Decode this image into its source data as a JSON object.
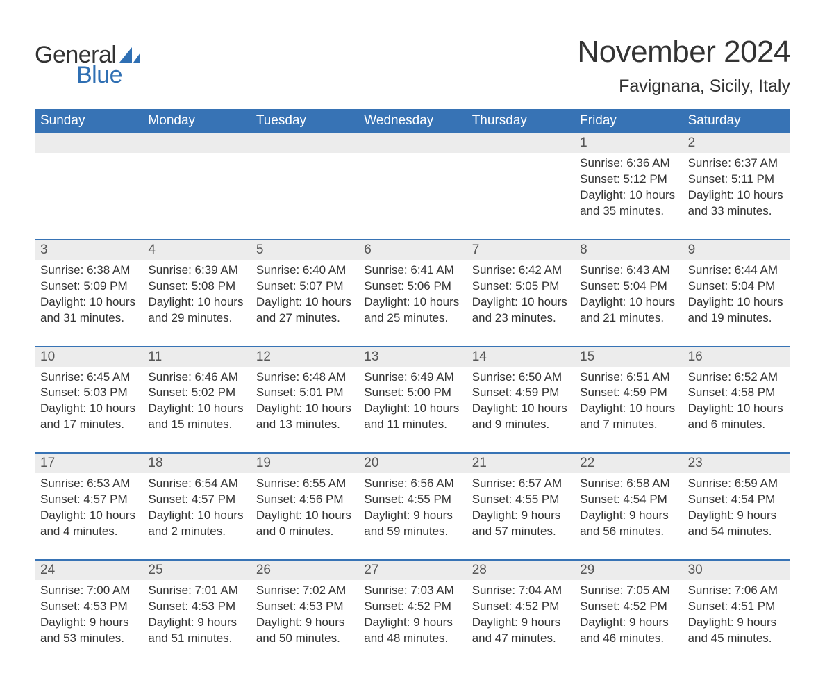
{
  "brand": {
    "text1": "General",
    "text2": "Blue",
    "text1_color": "#333333",
    "text2_color": "#2f6fb3",
    "sail_color": "#2f6fb3"
  },
  "title": "November 2024",
  "subtitle": "Favignana, Sicily, Italy",
  "colors": {
    "header_bg": "#3773b5",
    "header_text": "#ffffff",
    "daynum_bg": "#ececec",
    "row_divider": "#3773b5",
    "body_text": "#333333",
    "page_bg": "#ffffff"
  },
  "day_labels": [
    "Sunday",
    "Monday",
    "Tuesday",
    "Wednesday",
    "Thursday",
    "Friday",
    "Saturday"
  ],
  "weeks": [
    [
      {
        "blank": true
      },
      {
        "blank": true
      },
      {
        "blank": true
      },
      {
        "blank": true
      },
      {
        "blank": true
      },
      {
        "num": "1",
        "sunrise": "Sunrise: 6:36 AM",
        "sunset": "Sunset: 5:12 PM",
        "daylight1": "Daylight: 10 hours",
        "daylight2": "and 35 minutes."
      },
      {
        "num": "2",
        "sunrise": "Sunrise: 6:37 AM",
        "sunset": "Sunset: 5:11 PM",
        "daylight1": "Daylight: 10 hours",
        "daylight2": "and 33 minutes."
      }
    ],
    [
      {
        "num": "3",
        "sunrise": "Sunrise: 6:38 AM",
        "sunset": "Sunset: 5:09 PM",
        "daylight1": "Daylight: 10 hours",
        "daylight2": "and 31 minutes."
      },
      {
        "num": "4",
        "sunrise": "Sunrise: 6:39 AM",
        "sunset": "Sunset: 5:08 PM",
        "daylight1": "Daylight: 10 hours",
        "daylight2": "and 29 minutes."
      },
      {
        "num": "5",
        "sunrise": "Sunrise: 6:40 AM",
        "sunset": "Sunset: 5:07 PM",
        "daylight1": "Daylight: 10 hours",
        "daylight2": "and 27 minutes."
      },
      {
        "num": "6",
        "sunrise": "Sunrise: 6:41 AM",
        "sunset": "Sunset: 5:06 PM",
        "daylight1": "Daylight: 10 hours",
        "daylight2": "and 25 minutes."
      },
      {
        "num": "7",
        "sunrise": "Sunrise: 6:42 AM",
        "sunset": "Sunset: 5:05 PM",
        "daylight1": "Daylight: 10 hours",
        "daylight2": "and 23 minutes."
      },
      {
        "num": "8",
        "sunrise": "Sunrise: 6:43 AM",
        "sunset": "Sunset: 5:04 PM",
        "daylight1": "Daylight: 10 hours",
        "daylight2": "and 21 minutes."
      },
      {
        "num": "9",
        "sunrise": "Sunrise: 6:44 AM",
        "sunset": "Sunset: 5:04 PM",
        "daylight1": "Daylight: 10 hours",
        "daylight2": "and 19 minutes."
      }
    ],
    [
      {
        "num": "10",
        "sunrise": "Sunrise: 6:45 AM",
        "sunset": "Sunset: 5:03 PM",
        "daylight1": "Daylight: 10 hours",
        "daylight2": "and 17 minutes."
      },
      {
        "num": "11",
        "sunrise": "Sunrise: 6:46 AM",
        "sunset": "Sunset: 5:02 PM",
        "daylight1": "Daylight: 10 hours",
        "daylight2": "and 15 minutes."
      },
      {
        "num": "12",
        "sunrise": "Sunrise: 6:48 AM",
        "sunset": "Sunset: 5:01 PM",
        "daylight1": "Daylight: 10 hours",
        "daylight2": "and 13 minutes."
      },
      {
        "num": "13",
        "sunrise": "Sunrise: 6:49 AM",
        "sunset": "Sunset: 5:00 PM",
        "daylight1": "Daylight: 10 hours",
        "daylight2": "and 11 minutes."
      },
      {
        "num": "14",
        "sunrise": "Sunrise: 6:50 AM",
        "sunset": "Sunset: 4:59 PM",
        "daylight1": "Daylight: 10 hours",
        "daylight2": "and 9 minutes."
      },
      {
        "num": "15",
        "sunrise": "Sunrise: 6:51 AM",
        "sunset": "Sunset: 4:59 PM",
        "daylight1": "Daylight: 10 hours",
        "daylight2": "and 7 minutes."
      },
      {
        "num": "16",
        "sunrise": "Sunrise: 6:52 AM",
        "sunset": "Sunset: 4:58 PM",
        "daylight1": "Daylight: 10 hours",
        "daylight2": "and 6 minutes."
      }
    ],
    [
      {
        "num": "17",
        "sunrise": "Sunrise: 6:53 AM",
        "sunset": "Sunset: 4:57 PM",
        "daylight1": "Daylight: 10 hours",
        "daylight2": "and 4 minutes."
      },
      {
        "num": "18",
        "sunrise": "Sunrise: 6:54 AM",
        "sunset": "Sunset: 4:57 PM",
        "daylight1": "Daylight: 10 hours",
        "daylight2": "and 2 minutes."
      },
      {
        "num": "19",
        "sunrise": "Sunrise: 6:55 AM",
        "sunset": "Sunset: 4:56 PM",
        "daylight1": "Daylight: 10 hours",
        "daylight2": "and 0 minutes."
      },
      {
        "num": "20",
        "sunrise": "Sunrise: 6:56 AM",
        "sunset": "Sunset: 4:55 PM",
        "daylight1": "Daylight: 9 hours",
        "daylight2": "and 59 minutes."
      },
      {
        "num": "21",
        "sunrise": "Sunrise: 6:57 AM",
        "sunset": "Sunset: 4:55 PM",
        "daylight1": "Daylight: 9 hours",
        "daylight2": "and 57 minutes."
      },
      {
        "num": "22",
        "sunrise": "Sunrise: 6:58 AM",
        "sunset": "Sunset: 4:54 PM",
        "daylight1": "Daylight: 9 hours",
        "daylight2": "and 56 minutes."
      },
      {
        "num": "23",
        "sunrise": "Sunrise: 6:59 AM",
        "sunset": "Sunset: 4:54 PM",
        "daylight1": "Daylight: 9 hours",
        "daylight2": "and 54 minutes."
      }
    ],
    [
      {
        "num": "24",
        "sunrise": "Sunrise: 7:00 AM",
        "sunset": "Sunset: 4:53 PM",
        "daylight1": "Daylight: 9 hours",
        "daylight2": "and 53 minutes."
      },
      {
        "num": "25",
        "sunrise": "Sunrise: 7:01 AM",
        "sunset": "Sunset: 4:53 PM",
        "daylight1": "Daylight: 9 hours",
        "daylight2": "and 51 minutes."
      },
      {
        "num": "26",
        "sunrise": "Sunrise: 7:02 AM",
        "sunset": "Sunset: 4:53 PM",
        "daylight1": "Daylight: 9 hours",
        "daylight2": "and 50 minutes."
      },
      {
        "num": "27",
        "sunrise": "Sunrise: 7:03 AM",
        "sunset": "Sunset: 4:52 PM",
        "daylight1": "Daylight: 9 hours",
        "daylight2": "and 48 minutes."
      },
      {
        "num": "28",
        "sunrise": "Sunrise: 7:04 AM",
        "sunset": "Sunset: 4:52 PM",
        "daylight1": "Daylight: 9 hours",
        "daylight2": "and 47 minutes."
      },
      {
        "num": "29",
        "sunrise": "Sunrise: 7:05 AM",
        "sunset": "Sunset: 4:52 PM",
        "daylight1": "Daylight: 9 hours",
        "daylight2": "and 46 minutes."
      },
      {
        "num": "30",
        "sunrise": "Sunrise: 7:06 AM",
        "sunset": "Sunset: 4:51 PM",
        "daylight1": "Daylight: 9 hours",
        "daylight2": "and 45 minutes."
      }
    ]
  ]
}
